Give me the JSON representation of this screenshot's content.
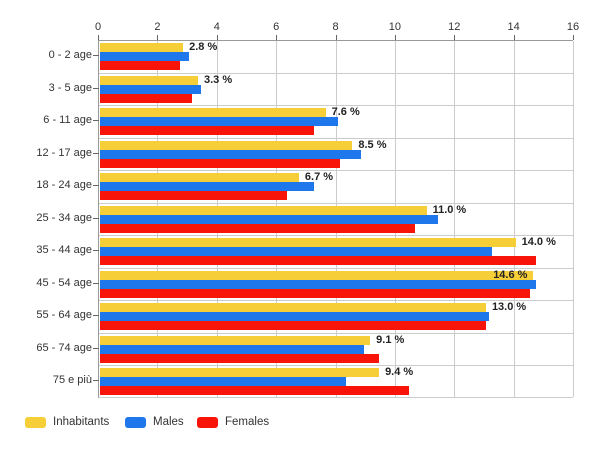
{
  "chart_data": {
    "type": "bar",
    "orientation": "horizontal",
    "title": "",
    "xlabel": "",
    "ylabel": "",
    "xlim": [
      0,
      16
    ],
    "x_ticks": [
      0,
      2,
      4,
      6,
      8,
      10,
      12,
      14,
      16
    ],
    "grid": true,
    "legend_position": "bottom",
    "categories": [
      "0 - 2 age",
      "3 - 5 age",
      "6 - 11 age",
      "12 - 17 age",
      "18 - 24 age",
      "25 - 34 age",
      "35 - 44 age",
      "45 - 54 age",
      "55 - 64 age",
      "65 - 74 age",
      "75 e più"
    ],
    "series": [
      {
        "name": "Inhabitants",
        "color": "#F6CE38",
        "values": [
          2.8,
          3.3,
          7.6,
          8.5,
          6.7,
          11.0,
          14.0,
          14.6,
          13.0,
          9.1,
          9.4
        ]
      },
      {
        "name": "Males",
        "color": "#1F78EB",
        "values": [
          3.0,
          3.4,
          8.0,
          8.8,
          7.2,
          11.4,
          13.2,
          14.7,
          13.1,
          8.9,
          8.3
        ]
      },
      {
        "name": "Females",
        "color": "#F91409",
        "values": [
          2.7,
          3.1,
          7.2,
          8.1,
          6.3,
          10.6,
          14.7,
          14.5,
          13.0,
          9.4,
          10.4
        ]
      }
    ],
    "value_labels": [
      "2.8 %",
      "3.3 %",
      "7.6 %",
      "8.5 %",
      "6.7 %",
      "11.0 %",
      "14.0 %",
      "14.6 %",
      "13.0 %",
      "9.1 %",
      "9.4 %"
    ],
    "value_label_inside": [
      false,
      false,
      false,
      false,
      false,
      false,
      false,
      true,
      false,
      false,
      false
    ]
  },
  "legend": {
    "items": [
      {
        "label": "Inhabitants",
        "color": "#F6CE38"
      },
      {
        "label": "Males",
        "color": "#1F78EB"
      },
      {
        "label": "Females",
        "color": "#F91409"
      }
    ]
  },
  "colors": {
    "axis": "#999999",
    "gridline": "#cccccc",
    "tick_text": "#333333",
    "value_text": "#222222",
    "background": "#ffffff"
  }
}
